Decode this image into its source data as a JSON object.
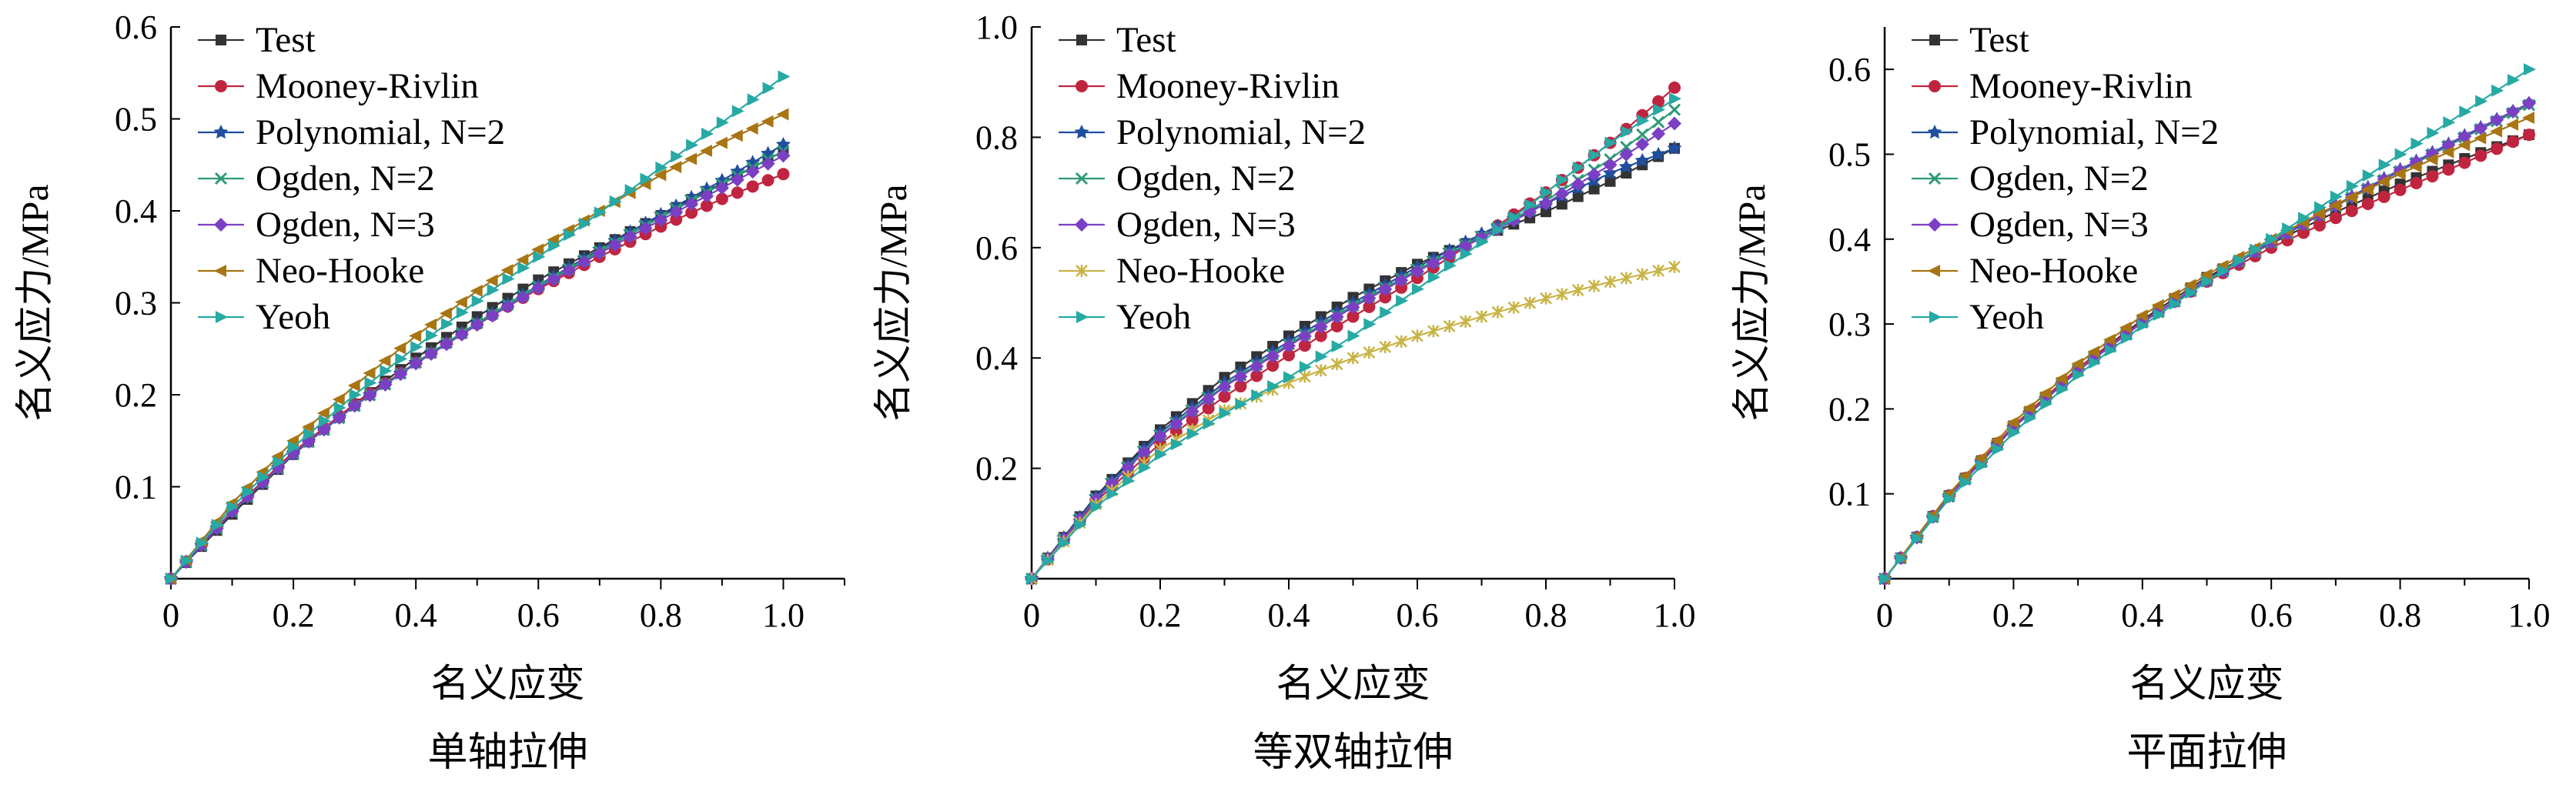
{
  "chart_data": [
    {
      "type": "line",
      "caption": "单轴拉伸",
      "xlabel": "名义应变",
      "ylabel": "名义应力/MPa",
      "xlim": [
        0,
        1.1
      ],
      "ylim": [
        0,
        0.6
      ],
      "xticks": [
        0,
        0.2,
        0.4,
        0.6,
        0.8,
        1.0
      ],
      "xtick_labels": [
        "0",
        "0.2",
        "0.4",
        "0.6",
        "0.8",
        "1.0"
      ],
      "yticks": [
        0.1,
        0.2,
        0.3,
        0.4,
        0.5,
        0.6
      ],
      "ytick_labels": [
        "0.1",
        "0.2",
        "0.3",
        "0.4",
        "0.5",
        "0.6"
      ],
      "legend_position": "top-left",
      "x": [
        0,
        0.1,
        0.2,
        0.3,
        0.4,
        0.5,
        0.6,
        0.7,
        0.8,
        0.9,
        1.0
      ],
      "series": [
        {
          "name": "Test",
          "color": "#333333",
          "marker": "square",
          "values": [
            0,
            0.07,
            0.135,
            0.19,
            0.24,
            0.285,
            0.325,
            0.36,
            0.395,
            0.43,
            0.465
          ]
        },
        {
          "name": "Mooney-Rivlin",
          "color": "#c0253f",
          "marker": "circle",
          "values": [
            0,
            0.074,
            0.138,
            0.19,
            0.235,
            0.277,
            0.315,
            0.35,
            0.383,
            0.413,
            0.44
          ]
        },
        {
          "name": "Polynomial, N=2",
          "color": "#1f4f9e",
          "marker": "star",
          "values": [
            0,
            0.073,
            0.136,
            0.188,
            0.235,
            0.278,
            0.319,
            0.358,
            0.396,
            0.433,
            0.472
          ]
        },
        {
          "name": "Ogden, N=2",
          "color": "#2e9b76",
          "marker": "cross",
          "values": [
            0,
            0.073,
            0.136,
            0.188,
            0.235,
            0.278,
            0.318,
            0.356,
            0.393,
            0.429,
            0.465
          ]
        },
        {
          "name": "Ogden, N=3",
          "color": "#7b3fc4",
          "marker": "diamond",
          "values": [
            0,
            0.073,
            0.136,
            0.188,
            0.234,
            0.276,
            0.316,
            0.354,
            0.39,
            0.425,
            0.46
          ]
        },
        {
          "name": "Neo-Hooke",
          "color": "#a87513",
          "marker": "tri-left",
          "values": [
            0,
            0.082,
            0.15,
            0.21,
            0.264,
            0.313,
            0.358,
            0.4,
            0.439,
            0.474,
            0.505
          ]
        },
        {
          "name": "Yeoh",
          "color": "#27a9a4",
          "marker": "tri-right",
          "values": [
            0,
            0.078,
            0.143,
            0.2,
            0.252,
            0.302,
            0.35,
            0.398,
            0.447,
            0.496,
            0.546
          ]
        }
      ]
    },
    {
      "type": "line",
      "caption": "等双轴拉伸",
      "xlabel": "名义应变",
      "ylabel": "名义应力/MPa",
      "xlim": [
        0,
        1.0
      ],
      "ylim": [
        0,
        1.0
      ],
      "xticks": [
        0,
        0.2,
        0.4,
        0.6,
        0.8,
        1.0
      ],
      "xtick_labels": [
        "0",
        "0.2",
        "0.4",
        "0.6",
        "0.8",
        "1.0"
      ],
      "yticks": [
        0.2,
        0.4,
        0.6,
        0.8,
        1.0
      ],
      "ytick_labels": [
        "0.2",
        "0.4",
        "0.6",
        "0.8",
        "1.0"
      ],
      "legend_position": "top-left",
      "x": [
        0,
        0.1,
        0.2,
        0.3,
        0.4,
        0.5,
        0.6,
        0.7,
        0.8,
        0.9,
        1.0
      ],
      "series": [
        {
          "name": "Test",
          "color": "#333333",
          "marker": "square",
          "values": [
            0,
            0.15,
            0.27,
            0.365,
            0.44,
            0.51,
            0.57,
            0.62,
            0.665,
            0.72,
            0.78
          ]
        },
        {
          "name": "Mooney-Rivlin",
          "color": "#c0253f",
          "marker": "circle",
          "values": [
            0,
            0.14,
            0.245,
            0.33,
            0.405,
            0.475,
            0.545,
            0.62,
            0.7,
            0.79,
            0.89
          ]
        },
        {
          "name": "Polynomial, N=2",
          "color": "#1f4f9e",
          "marker": "star",
          "values": [
            0,
            0.148,
            0.265,
            0.355,
            0.43,
            0.5,
            0.565,
            0.625,
            0.68,
            0.735,
            0.78
          ]
        },
        {
          "name": "Ogden, N=2",
          "color": "#2e9b76",
          "marker": "cross",
          "values": [
            0,
            0.145,
            0.26,
            0.35,
            0.425,
            0.495,
            0.56,
            0.62,
            0.685,
            0.76,
            0.85
          ]
        },
        {
          "name": "Ogden, N=3",
          "color": "#7b3fc4",
          "marker": "diamond",
          "values": [
            0,
            0.144,
            0.258,
            0.348,
            0.422,
            0.492,
            0.557,
            0.618,
            0.68,
            0.75,
            0.825
          ]
        },
        {
          "name": "Neo-Hooke",
          "color": "#c8b446",
          "marker": "asterisk",
          "values": [
            0,
            0.135,
            0.235,
            0.305,
            0.355,
            0.4,
            0.44,
            0.475,
            0.508,
            0.538,
            0.565
          ]
        },
        {
          "name": "Yeoh",
          "color": "#27a9a4",
          "marker": "tri-right",
          "values": [
            0,
            0.13,
            0.225,
            0.3,
            0.365,
            0.44,
            0.525,
            0.61,
            0.7,
            0.79,
            0.87
          ]
        }
      ]
    },
    {
      "type": "line",
      "caption": "平面拉伸",
      "xlabel": "名义应变",
      "ylabel": "名义应力/MPa",
      "xlim": [
        0,
        1.0
      ],
      "ylim": [
        0,
        0.65
      ],
      "xticks": [
        0,
        0.2,
        0.4,
        0.6,
        0.8,
        1.0
      ],
      "xtick_labels": [
        "0",
        "0.2",
        "0.4",
        "0.6",
        "0.8",
        "1.0"
      ],
      "yticks": [
        0.1,
        0.2,
        0.3,
        0.4,
        0.5,
        0.6
      ],
      "ytick_labels": [
        "0.1",
        "0.2",
        "0.3",
        "0.4",
        "0.5",
        "0.6"
      ],
      "legend_position": "top-left",
      "x": [
        0,
        0.1,
        0.2,
        0.3,
        0.4,
        0.5,
        0.6,
        0.7,
        0.8,
        0.9,
        1.0
      ],
      "series": [
        {
          "name": "Test",
          "color": "#333333",
          "marker": "square",
          "values": [
            0,
            0.098,
            0.18,
            0.248,
            0.305,
            0.355,
            0.395,
            0.432,
            0.465,
            0.495,
            0.523
          ]
        },
        {
          "name": "Mooney-Rivlin",
          "color": "#c0253f",
          "marker": "circle",
          "values": [
            0,
            0.098,
            0.18,
            0.248,
            0.303,
            0.35,
            0.39,
            0.425,
            0.458,
            0.49,
            0.523
          ]
        },
        {
          "name": "Polynomial, N=2",
          "color": "#1f4f9e",
          "marker": "star",
          "values": [
            0,
            0.097,
            0.178,
            0.245,
            0.302,
            0.352,
            0.397,
            0.44,
            0.482,
            0.522,
            0.56
          ]
        },
        {
          "name": "Ogden, N=2",
          "color": "#2e9b76",
          "marker": "cross",
          "values": [
            0,
            0.097,
            0.178,
            0.245,
            0.302,
            0.351,
            0.396,
            0.439,
            0.48,
            0.52,
            0.558
          ]
        },
        {
          "name": "Ogden, N=3",
          "color": "#7b3fc4",
          "marker": "diamond",
          "values": [
            0,
            0.097,
            0.178,
            0.245,
            0.302,
            0.351,
            0.396,
            0.439,
            0.481,
            0.521,
            0.56
          ]
        },
        {
          "name": "Neo-Hooke",
          "color": "#a87513",
          "marker": "tri-left",
          "values": [
            0,
            0.1,
            0.184,
            0.253,
            0.31,
            0.358,
            0.4,
            0.44,
            0.477,
            0.511,
            0.543
          ]
        },
        {
          "name": "Yeoh",
          "color": "#27a9a4",
          "marker": "tri-right",
          "values": [
            0,
            0.094,
            0.172,
            0.24,
            0.298,
            0.35,
            0.4,
            0.45,
            0.5,
            0.55,
            0.6
          ]
        }
      ]
    }
  ]
}
